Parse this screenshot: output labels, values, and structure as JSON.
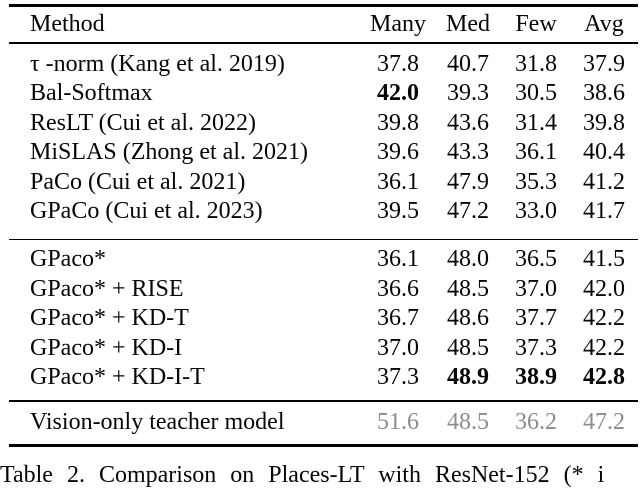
{
  "page": {
    "background": "#ffffff",
    "text_color": "#070707",
    "muted_color": "#8c8c8c"
  },
  "table": {
    "columns": {
      "method": "Method",
      "many": "Many",
      "med": "Med",
      "few": "Few",
      "avg": "Avg"
    },
    "sections": [
      {
        "rows": [
          {
            "method": "τ -norm (Kang et al. 2019)",
            "many": "37.8",
            "med": "40.7",
            "few": "31.8",
            "avg": "37.9"
          },
          {
            "method": "Bal-Softmax",
            "many": "42.0",
            "med": "39.3",
            "few": "30.5",
            "avg": "38.6"
          },
          {
            "method": "ResLT (Cui et al. 2022)",
            "many": "39.8",
            "med": "43.6",
            "few": "31.4",
            "avg": "39.8"
          },
          {
            "method": "MiSLAS (Zhong et al. 2021)",
            "many": "39.6",
            "med": "43.3",
            "few": "36.1",
            "avg": "40.4"
          },
          {
            "method": "PaCo (Cui et al. 2021)",
            "many": "36.1",
            "med": "47.9",
            "few": "35.3",
            "avg": "41.2"
          },
          {
            "method": "GPaCo (Cui et al. 2023)",
            "many": "39.5",
            "med": "47.2",
            "few": "33.0",
            "avg": "41.7"
          }
        ]
      },
      {
        "rows": [
          {
            "method": "GPaco*",
            "many": "36.1",
            "med": "48.0",
            "few": "36.5",
            "avg": "41.5"
          },
          {
            "method": "GPaco* + RISE",
            "many": "36.6",
            "med": "48.5",
            "few": "37.0",
            "avg": "42.0"
          },
          {
            "method": "GPaco* + KD-T",
            "many": "36.7",
            "med": "48.6",
            "few": "37.7",
            "avg": "42.2"
          },
          {
            "method": "GPaco* + KD-I",
            "many": "37.0",
            "med": "48.5",
            "few": "37.3",
            "avg": "42.2"
          },
          {
            "method": "GPaco* + KD-I-T",
            "many": "37.3",
            "med": "48.9",
            "few": "38.9",
            "avg": "42.8"
          }
        ]
      }
    ],
    "teacher_row": {
      "method": "Vision-only teacher model",
      "many": "51.6",
      "med": "48.5",
      "few": "36.2",
      "avg": "47.2"
    }
  },
  "caption": "Table 2. Comparison on Places-LT with ResNet-152 (* i"
}
